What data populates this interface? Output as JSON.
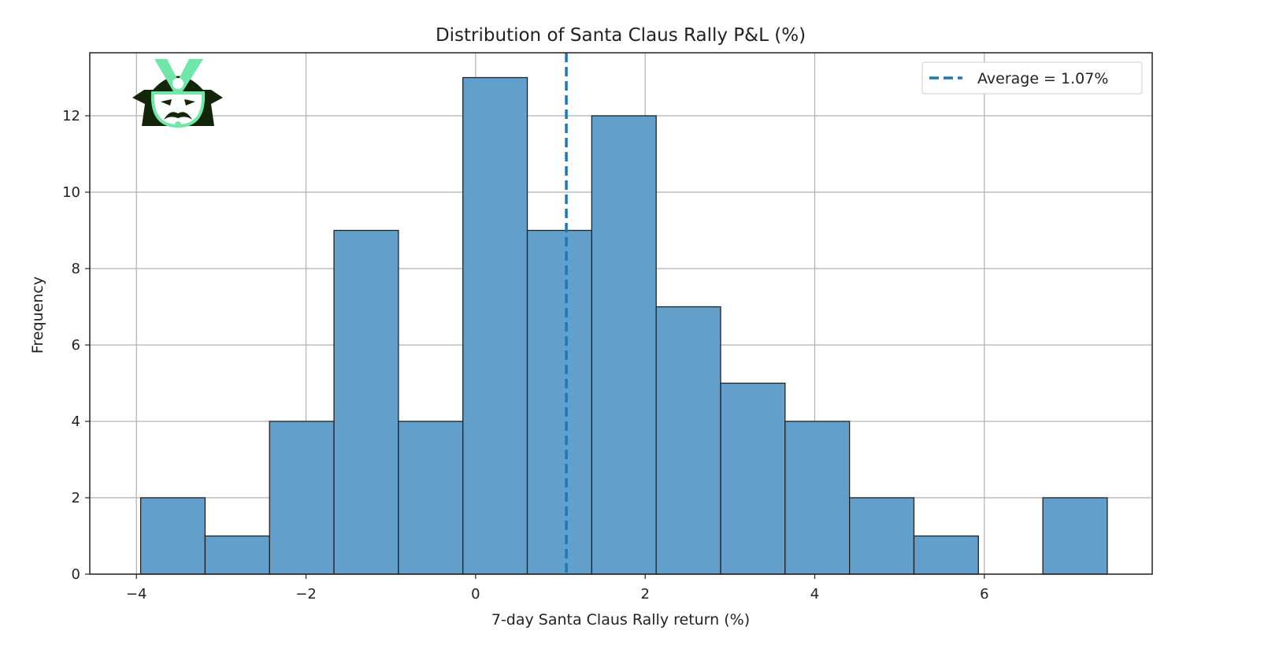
{
  "chart_data": {
    "type": "bar",
    "title": "Distribution of Santa Claus Rally P&L (%)",
    "xlabel": "7-day Santa Claus Rally return (%)",
    "ylabel": "Frequency",
    "xlim": [
      -4.55,
      7.98
    ],
    "ylim": [
      0,
      13.65
    ],
    "xticks": [
      -4,
      -2,
      0,
      2,
      4,
      6
    ],
    "xtick_labels": [
      "−4",
      "−2",
      "0",
      "2",
      "4",
      "6"
    ],
    "yticks": [
      0,
      2,
      4,
      6,
      8,
      10,
      12
    ],
    "ytick_labels": [
      "0",
      "2",
      "4",
      "6",
      "8",
      "10",
      "12"
    ],
    "grid": true,
    "bin_start": -3.95,
    "bin_width": 0.76,
    "values": [
      2,
      1,
      4,
      9,
      4,
      13,
      9,
      12,
      7,
      5,
      4,
      2,
      1,
      0,
      2
    ],
    "average": 1.07,
    "legend": {
      "label": "Average = 1.07%",
      "placement": "top-right"
    },
    "colors": {
      "bar": "#62a0cb",
      "edge": "#222222",
      "avg_line": "#1f77b4",
      "grid": "#b0b0b0"
    }
  },
  "logo": {
    "name": "samurai-helmet-logo",
    "colors": {
      "dark": "#13260a",
      "accent": "#6ee7a8"
    }
  }
}
